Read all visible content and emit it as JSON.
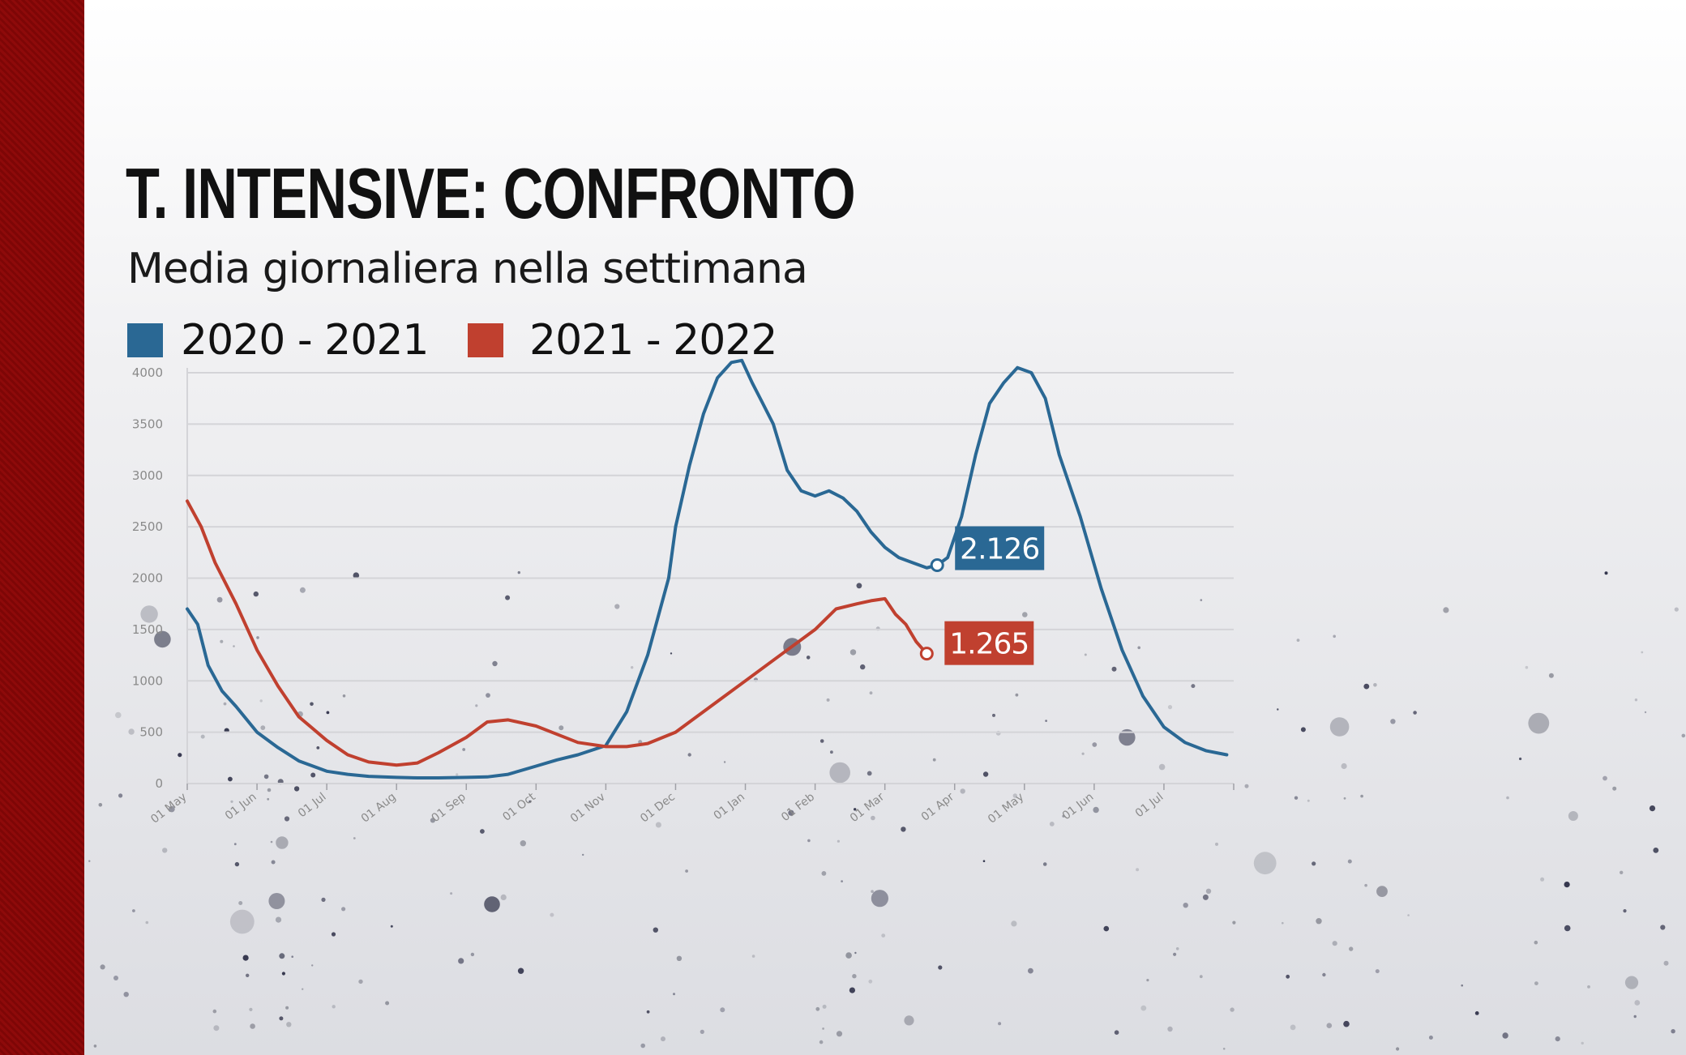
{
  "title": "T. INTENSIVE: CONFRONTO",
  "subtitle": "Media giornaliera nella settimana",
  "colors": {
    "band": "#8e0a0a",
    "series_2020": "#2a6894",
    "series_2021": "#c0402f",
    "grid": "#d4d4d8",
    "tick": "#8a8a8a"
  },
  "chart_data": {
    "type": "line",
    "x_ticks": [
      "01 May",
      "01 Jun",
      "01 Jul",
      "01 Aug",
      "01 Sep",
      "01 Oct",
      "01 Nov",
      "01 Dec",
      "01 Jan",
      "01 Feb",
      "01 Mar",
      "01 Apr",
      "01 May",
      "01 Jun",
      "01 Jul"
    ],
    "y_ticks": [
      "4000",
      "3500",
      "3000",
      "2500",
      "2000",
      "1500",
      "1000",
      "500",
      "0"
    ],
    "ylim": [
      0,
      4000
    ],
    "x_unit": "month",
    "xlim": [
      0,
      15
    ],
    "grid": true,
    "legend_position": "top-left",
    "series": [
      {
        "name": "2020 - 2021",
        "color": "#2a6894",
        "x": [
          0,
          0.15,
          0.3,
          0.5,
          0.7,
          1,
          1.3,
          1.6,
          2,
          2.3,
          2.6,
          3,
          3.3,
          3.6,
          4,
          4.3,
          4.6,
          5,
          5.3,
          5.6,
          6,
          6.3,
          6.6,
          6.9,
          7,
          7.2,
          7.4,
          7.6,
          7.8,
          7.95,
          8.1,
          8.25,
          8.4,
          8.6,
          8.8,
          9,
          9.2,
          9.4,
          9.6,
          9.8,
          10,
          10.2,
          10.4,
          10.6,
          10.75,
          10.9,
          11.1,
          11.3,
          11.5,
          11.7,
          11.9,
          12.1,
          12.3,
          12.5,
          12.8,
          13.1,
          13.4,
          13.7,
          14,
          14.3,
          14.6,
          14.9
        ],
        "y": [
          1700,
          1550,
          1150,
          900,
          750,
          500,
          350,
          220,
          120,
          90,
          70,
          60,
          55,
          55,
          60,
          65,
          90,
          170,
          230,
          280,
          370,
          700,
          1250,
          2000,
          2500,
          3100,
          3600,
          3950,
          4100,
          4120,
          3900,
          3700,
          3500,
          3050,
          2850,
          2800,
          2850,
          2780,
          2650,
          2450,
          2300,
          2200,
          2150,
          2100,
          2126,
          2200,
          2600,
          3200,
          3700,
          3900,
          4050,
          4000,
          3750,
          3200,
          2600,
          1900,
          1300,
          850,
          550,
          400,
          320,
          280
        ]
      },
      {
        "name": "2021 - 2022",
        "color": "#c0402f",
        "x": [
          0,
          0.2,
          0.4,
          0.7,
          1,
          1.3,
          1.6,
          2,
          2.3,
          2.6,
          3,
          3.3,
          3.6,
          4,
          4.3,
          4.6,
          5,
          5.3,
          5.6,
          6,
          6.3,
          6.6,
          7,
          7.3,
          7.6,
          8,
          8.3,
          8.6,
          9,
          9.3,
          9.6,
          9.8,
          10,
          10.15,
          10.3,
          10.45,
          10.6
        ],
        "y": [
          2750,
          2500,
          2150,
          1750,
          1300,
          950,
          650,
          420,
          280,
          210,
          180,
          200,
          300,
          450,
          600,
          620,
          560,
          480,
          400,
          360,
          360,
          390,
          500,
          650,
          800,
          1000,
          1150,
          1300,
          1500,
          1700,
          1750,
          1780,
          1800,
          1650,
          1550,
          1380,
          1265
        ]
      }
    ],
    "annotations": [
      {
        "series": "2020 - 2021",
        "x": 10.75,
        "y": 2126,
        "label": "2.126"
      },
      {
        "series": "2021 - 2022",
        "x": 10.6,
        "y": 1265,
        "label": "1.265"
      }
    ]
  }
}
